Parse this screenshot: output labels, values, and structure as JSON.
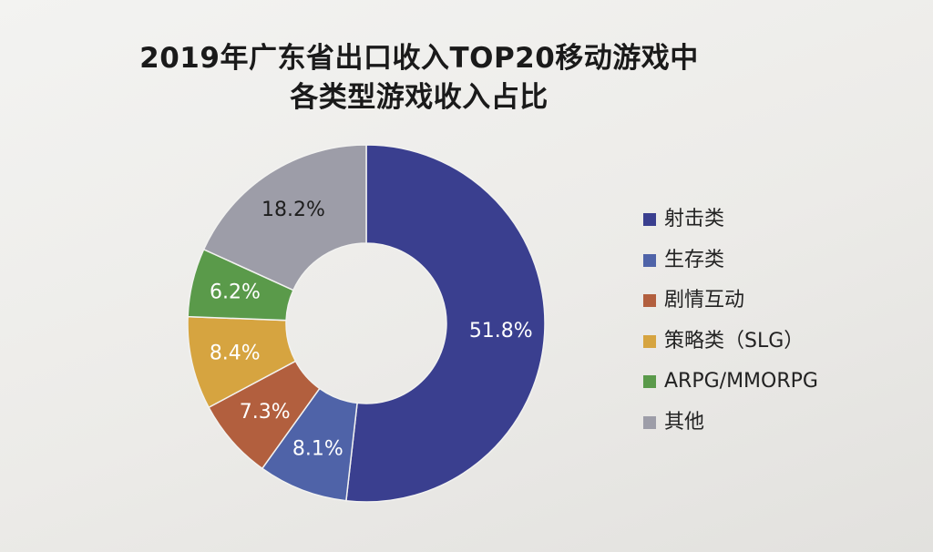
{
  "chart_data": {
    "type": "pie",
    "title": "2019年广东省出口收入TOP20移动游戏中",
    "subtitle": "各类型游戏收入占比",
    "donut": true,
    "categories": [
      "射击类",
      "生存类",
      "剧情互动",
      "策略类（SLG）",
      "ARPG/MMORPG",
      "其他"
    ],
    "values": [
      51.8,
      8.1,
      7.3,
      8.4,
      6.2,
      18.2
    ],
    "data_labels": [
      "51.8%",
      "8.1%",
      "7.3%",
      "8.4%",
      "6.2%",
      "18.2%"
    ],
    "colors": [
      "#3a3f8f",
      "#4f63a8",
      "#b25f3e",
      "#d6a440",
      "#5a9a4a",
      "#9d9da8"
    ],
    "label_colors": [
      "#ffffff",
      "#ffffff",
      "#ffffff",
      "#ffffff",
      "#ffffff",
      "#1e1e1e"
    ],
    "legend": {
      "position": "right",
      "labels": [
        "射击类",
        "生存类",
        "剧情互动",
        "策略类（SLG）",
        "ARPG/MMORPG",
        "其他"
      ]
    }
  }
}
